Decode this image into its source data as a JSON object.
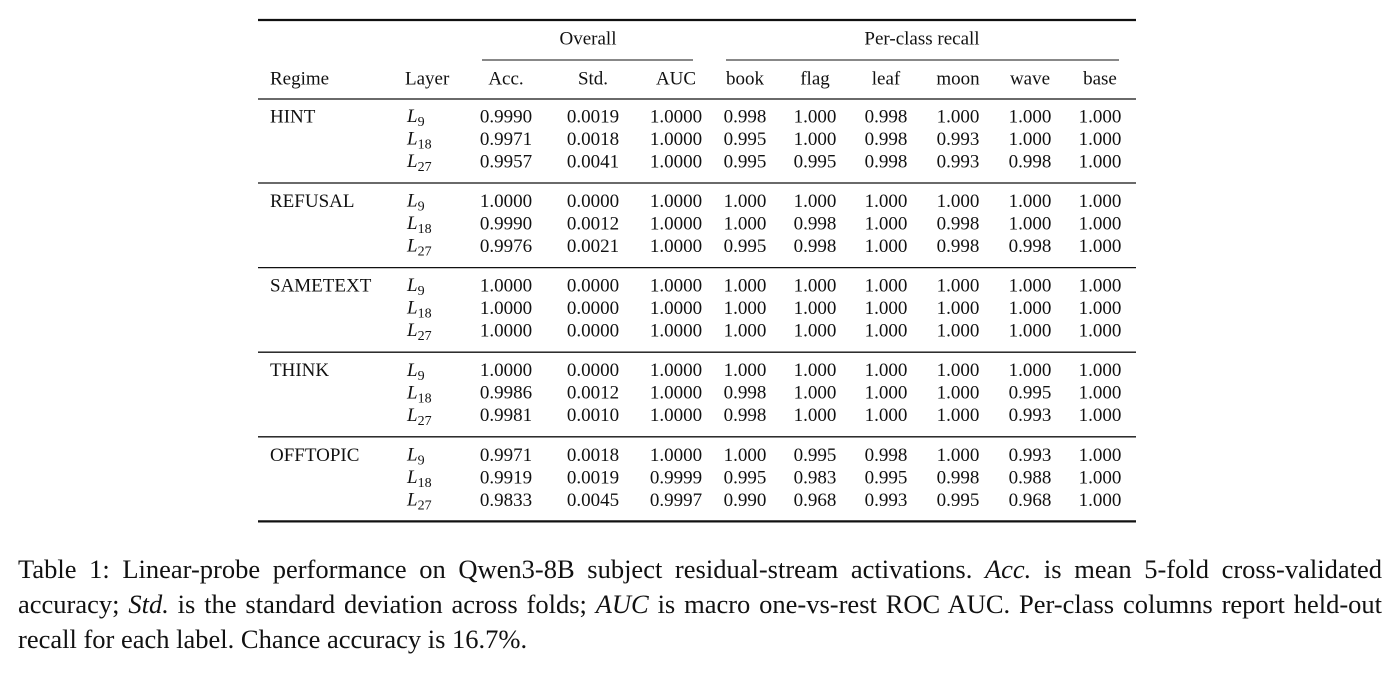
{
  "table": {
    "group_headers": [
      "Overall",
      "Per-class recall"
    ],
    "columns": [
      "Regime",
      "Layer",
      "Acc.",
      "Std.",
      "AUC",
      "book",
      "flag",
      "leaf",
      "moon",
      "wave",
      "base"
    ],
    "groups": [
      {
        "regime": "HINT",
        "rows": [
          {
            "layer": {
              "symbol": "L",
              "subscript": "9"
            },
            "values": [
              "0.9990",
              "0.0019",
              "1.0000",
              "0.998",
              "1.000",
              "0.998",
              "1.000",
              "1.000",
              "1.000"
            ]
          },
          {
            "layer": {
              "symbol": "L",
              "subscript": "18"
            },
            "values": [
              "0.9971",
              "0.0018",
              "1.0000",
              "0.995",
              "1.000",
              "0.998",
              "0.993",
              "1.000",
              "1.000"
            ]
          },
          {
            "layer": {
              "symbol": "L",
              "subscript": "27"
            },
            "values": [
              "0.9957",
              "0.0041",
              "1.0000",
              "0.995",
              "0.995",
              "0.998",
              "0.993",
              "0.998",
              "1.000"
            ]
          }
        ]
      },
      {
        "regime": "REFUSAL",
        "rows": [
          {
            "layer": {
              "symbol": "L",
              "subscript": "9"
            },
            "values": [
              "1.0000",
              "0.0000",
              "1.0000",
              "1.000",
              "1.000",
              "1.000",
              "1.000",
              "1.000",
              "1.000"
            ]
          },
          {
            "layer": {
              "symbol": "L",
              "subscript": "18"
            },
            "values": [
              "0.9990",
              "0.0012",
              "1.0000",
              "1.000",
              "0.998",
              "1.000",
              "0.998",
              "1.000",
              "1.000"
            ]
          },
          {
            "layer": {
              "symbol": "L",
              "subscript": "27"
            },
            "values": [
              "0.9976",
              "0.0021",
              "1.0000",
              "0.995",
              "0.998",
              "1.000",
              "0.998",
              "0.998",
              "1.000"
            ]
          }
        ]
      },
      {
        "regime": "SAMETEXT",
        "rows": [
          {
            "layer": {
              "symbol": "L",
              "subscript": "9"
            },
            "values": [
              "1.0000",
              "0.0000",
              "1.0000",
              "1.000",
              "1.000",
              "1.000",
              "1.000",
              "1.000",
              "1.000"
            ]
          },
          {
            "layer": {
              "symbol": "L",
              "subscript": "18"
            },
            "values": [
              "1.0000",
              "0.0000",
              "1.0000",
              "1.000",
              "1.000",
              "1.000",
              "1.000",
              "1.000",
              "1.000"
            ]
          },
          {
            "layer": {
              "symbol": "L",
              "subscript": "27"
            },
            "values": [
              "1.0000",
              "0.0000",
              "1.0000",
              "1.000",
              "1.000",
              "1.000",
              "1.000",
              "1.000",
              "1.000"
            ]
          }
        ]
      },
      {
        "regime": "THINK",
        "rows": [
          {
            "layer": {
              "symbol": "L",
              "subscript": "9"
            },
            "values": [
              "1.0000",
              "0.0000",
              "1.0000",
              "1.000",
              "1.000",
              "1.000",
              "1.000",
              "1.000",
              "1.000"
            ]
          },
          {
            "layer": {
              "symbol": "L",
              "subscript": "18"
            },
            "values": [
              "0.9986",
              "0.0012",
              "1.0000",
              "0.998",
              "1.000",
              "1.000",
              "1.000",
              "0.995",
              "1.000"
            ]
          },
          {
            "layer": {
              "symbol": "L",
              "subscript": "27"
            },
            "values": [
              "0.9981",
              "0.0010",
              "1.0000",
              "0.998",
              "1.000",
              "1.000",
              "1.000",
              "0.993",
              "1.000"
            ]
          }
        ]
      },
      {
        "regime": "OFFTOPIC",
        "rows": [
          {
            "layer": {
              "symbol": "L",
              "subscript": "9"
            },
            "values": [
              "0.9971",
              "0.0018",
              "1.0000",
              "1.000",
              "0.995",
              "0.998",
              "1.000",
              "0.993",
              "1.000"
            ]
          },
          {
            "layer": {
              "symbol": "L",
              "subscript": "18"
            },
            "values": [
              "0.9919",
              "0.0019",
              "0.9999",
              "0.995",
              "0.983",
              "0.995",
              "0.998",
              "0.988",
              "1.000"
            ]
          },
          {
            "layer": {
              "symbol": "L",
              "subscript": "27"
            },
            "values": [
              "0.9833",
              "0.0045",
              "0.9997",
              "0.990",
              "0.968",
              "0.993",
              "0.995",
              "0.968",
              "1.000"
            ]
          }
        ]
      }
    ]
  },
  "caption": {
    "parts": [
      {
        "text": "Table 1: Linear-probe performance on Qwen3-8B subject residual-stream activations. "
      },
      {
        "text": "Acc.",
        "italic": true
      },
      {
        "text": " is mean 5-fold cross-validated accuracy; "
      },
      {
        "text": "Std.",
        "italic": true
      },
      {
        "text": " is the standard deviation across folds; "
      },
      {
        "text": "AUC",
        "italic": true
      },
      {
        "text": " is macro one-vs-rest ROC AUC. Per-class columns report held-out recall for each label. Chance accuracy is 16.7%."
      }
    ]
  }
}
